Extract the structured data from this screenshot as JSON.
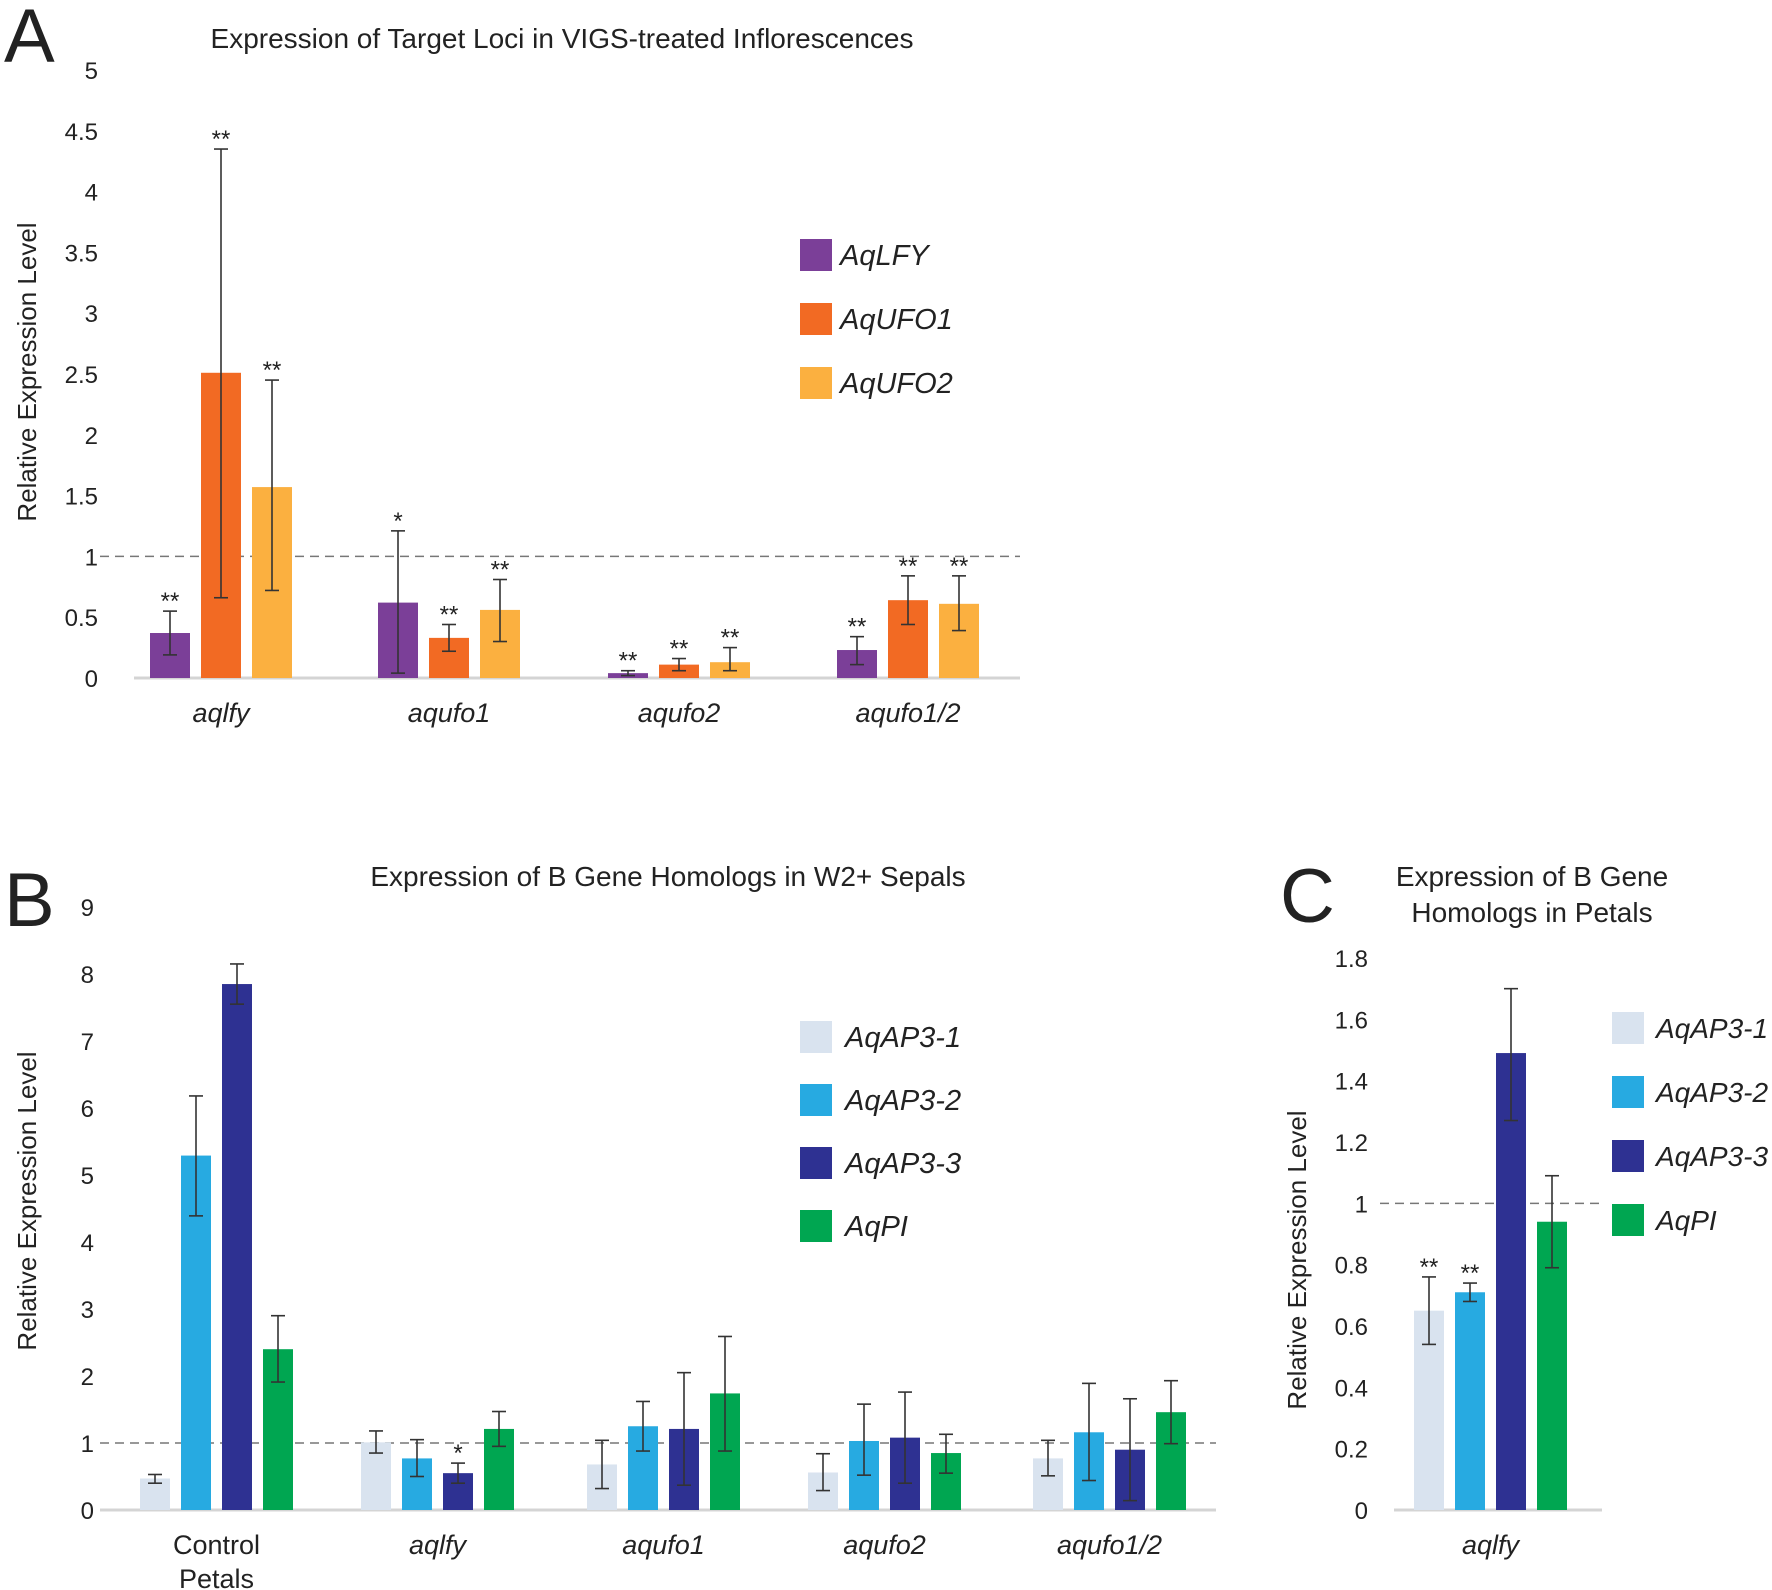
{
  "chart_data": [
    {
      "panel": "A",
      "type": "bar",
      "title": "Expression of Target Loci in VIGS-treated Inflorescences",
      "ylabel": "Relative Expression Level",
      "ylim": [
        0,
        5
      ],
      "yticks": [
        "0",
        "0.5",
        "1",
        "1.5",
        "2",
        "2.5",
        "3",
        "3.5",
        "4",
        "4.5",
        "5"
      ],
      "reference_line": 1,
      "categories": [
        "aqlfy",
        "aqufo1",
        "aqufo2",
        "aqufo1/2"
      ],
      "series": [
        {
          "name": "AqLFY",
          "color": "#7b3f98",
          "values": [
            0.37,
            0.62,
            0.04,
            0.23
          ],
          "errors": [
            [
              0.19,
              0.55
            ],
            [
              0.04,
              1.21
            ],
            [
              0.02,
              0.06
            ],
            [
              0.11,
              0.34
            ]
          ],
          "sig": [
            "**",
            "*",
            "**",
            "**"
          ]
        },
        {
          "name": "AqUFO1",
          "color": "#f26a23",
          "values": [
            2.51,
            0.33,
            0.11,
            0.64
          ],
          "errors": [
            [
              0.66,
              4.35
            ],
            [
              0.22,
              0.44
            ],
            [
              0.06,
              0.16
            ],
            [
              0.44,
              0.84
            ]
          ],
          "sig": [
            "**",
            "**",
            "**",
            "**"
          ]
        },
        {
          "name": "AqUFO2",
          "color": "#fbb040",
          "values": [
            1.57,
            0.56,
            0.13,
            0.61
          ],
          "errors": [
            [
              0.72,
              2.45
            ],
            [
              0.3,
              0.81
            ],
            [
              0.06,
              0.25
            ],
            [
              0.39,
              0.84
            ]
          ],
          "sig": [
            "**",
            "**",
            "**",
            "**"
          ]
        }
      ]
    },
    {
      "panel": "B",
      "type": "bar",
      "title": "Expression of B Gene Homologs in W2+ Sepals",
      "ylabel": "Relative Expression Level",
      "ylim": [
        0,
        9
      ],
      "yticks": [
        "0",
        "1",
        "2",
        "3",
        "4",
        "5",
        "6",
        "7",
        "8",
        "9"
      ],
      "reference_line": 1,
      "categories": [
        "Control Petals",
        "aqlfy",
        "aqufo1",
        "aqufo2",
        "aqufo1/2"
      ],
      "series": [
        {
          "name": "AqAP3-1",
          "color": "#d9e3ef",
          "values": [
            0.47,
            1.01,
            0.68,
            0.56,
            0.77
          ],
          "errors": [
            [
              0.4,
              0.53
            ],
            [
              0.85,
              1.18
            ],
            [
              0.32,
              1.04
            ],
            [
              0.29,
              0.84
            ],
            [
              0.51,
              1.04
            ]
          ],
          "sig": [
            "",
            "",
            "",
            "",
            ""
          ]
        },
        {
          "name": "AqAP3-2",
          "color": "#27aae1",
          "values": [
            5.29,
            0.77,
            1.25,
            1.03,
            1.16
          ],
          "errors": [
            [
              4.39,
              6.18
            ],
            [
              0.5,
              1.05
            ],
            [
              0.88,
              1.62
            ],
            [
              0.52,
              1.58
            ],
            [
              0.44,
              1.89
            ]
          ],
          "sig": [
            "",
            "",
            "",
            "",
            ""
          ]
        },
        {
          "name": "AqAP3-3",
          "color": "#2e3192",
          "values": [
            7.85,
            0.55,
            1.21,
            1.08,
            0.9
          ],
          "errors": [
            [
              7.55,
              8.15
            ],
            [
              0.4,
              0.7
            ],
            [
              0.37,
              2.05
            ],
            [
              0.4,
              1.76
            ],
            [
              0.14,
              1.66
            ]
          ],
          "sig": [
            "",
            "*",
            "",
            "",
            ""
          ]
        },
        {
          "name": "AqPI",
          "color": "#00a651",
          "values": [
            2.4,
            1.21,
            1.74,
            0.85,
            1.46
          ],
          "errors": [
            [
              1.91,
              2.9
            ],
            [
              0.95,
              1.47
            ],
            [
              0.88,
              2.59
            ],
            [
              0.55,
              1.13
            ],
            [
              0.99,
              1.93
            ]
          ],
          "sig": [
            "",
            "",
            "",
            "",
            ""
          ]
        }
      ]
    },
    {
      "panel": "C",
      "type": "bar",
      "title": "Expression of B Gene Homologs in Petals",
      "title_lines": [
        "Expression of B Gene",
        "Homologs in Petals"
      ],
      "ylabel": "Relative Expression Level",
      "ylim": [
        0,
        1.8
      ],
      "yticks": [
        "0",
        "0.2",
        "0.4",
        "0.6",
        "0.8",
        "1",
        "1.2",
        "1.4",
        "1.6",
        "1.8"
      ],
      "reference_line": 1,
      "categories": [
        "aqlfy"
      ],
      "series": [
        {
          "name": "AqAP3-1",
          "color": "#d9e3ef",
          "values": [
            0.65
          ],
          "errors": [
            [
              0.54,
              0.76
            ]
          ],
          "sig": [
            "**"
          ]
        },
        {
          "name": "AqAP3-2",
          "color": "#27aae1",
          "values": [
            0.71
          ],
          "errors": [
            [
              0.68,
              0.74
            ]
          ],
          "sig": [
            "**"
          ]
        },
        {
          "name": "AqAP3-3",
          "color": "#2e3192",
          "values": [
            1.49
          ],
          "errors": [
            [
              1.27,
              1.7
            ]
          ],
          "sig": [
            ""
          ]
        },
        {
          "name": "AqPI",
          "color": "#00a651",
          "values": [
            0.94
          ],
          "errors": [
            [
              0.79,
              1.09
            ]
          ],
          "sig": [
            ""
          ]
        }
      ]
    }
  ]
}
